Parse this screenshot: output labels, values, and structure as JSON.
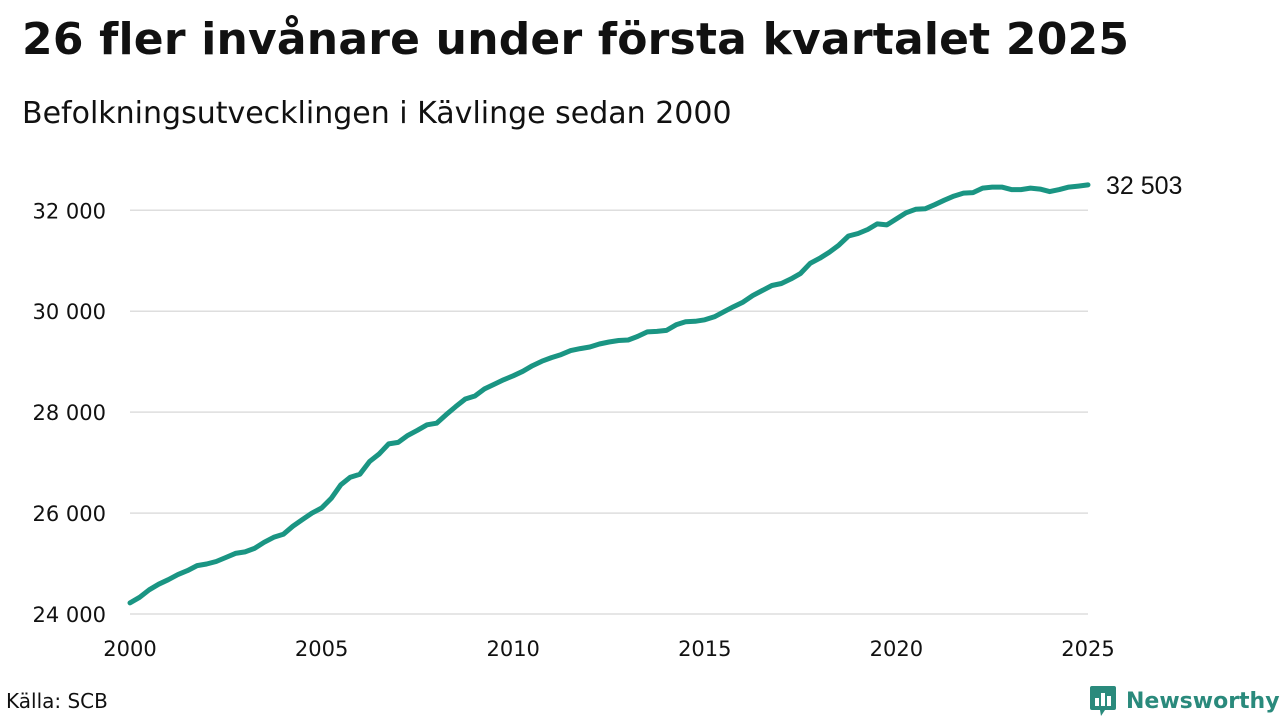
{
  "header": {
    "title": "26 fler invånare under första kvartalet 2025",
    "subtitle": "Befolkningsutvecklingen i Kävlinge sedan 2000"
  },
  "footer": {
    "source": "Källa: SCB",
    "brand": "Newsworthy",
    "brand_icon": "chart-bubble-icon",
    "brand_color": "#2a8a7c"
  },
  "chart_data": {
    "type": "line",
    "title": "26 fler invånare under första kvartalet 2025",
    "subtitle": "Befolkningsutvecklingen i Kävlinge sedan 2000",
    "xlim": [
      2000,
      2025
    ],
    "ylim": [
      24000,
      32600
    ],
    "x_ticks": [
      2000,
      2005,
      2010,
      2015,
      2020,
      2025
    ],
    "x_tick_labels": [
      "2000",
      "2005",
      "2010",
      "2015",
      "2020",
      "2025"
    ],
    "y_ticks": [
      24000,
      26000,
      28000,
      30000,
      32000
    ],
    "y_tick_labels": [
      "24 000",
      "26 000",
      "28 000",
      "30 000",
      "32 000"
    ],
    "grid": "horizontal",
    "line_color": "#1a9583",
    "end_label": "32 503",
    "series": [
      {
        "x": [
          2000.0,
          2000.25,
          2000.5,
          2000.75,
          2001.0,
          2001.25,
          2001.5,
          2001.75,
          2002.0,
          2002.25,
          2002.5,
          2002.75,
          2003.0,
          2003.25,
          2003.5,
          2003.75,
          2004.0,
          2004.25,
          2004.5,
          2004.75,
          2005.0,
          2005.25,
          2005.5,
          2005.75,
          2006.0,
          2006.25,
          2006.5,
          2006.75,
          2007.0,
          2007.25,
          2007.5,
          2007.75,
          2008.0,
          2008.25,
          2008.5,
          2008.75,
          2009.0,
          2009.25,
          2009.5,
          2009.75,
          2010.0,
          2010.25,
          2010.5,
          2010.75,
          2011.0,
          2011.25,
          2011.5,
          2011.75,
          2012.0,
          2012.25,
          2012.5,
          2012.75,
          2013.0,
          2013.25,
          2013.5,
          2013.75,
          2014.0,
          2014.25,
          2014.5,
          2014.75,
          2015.0,
          2015.25,
          2015.5,
          2015.75,
          2016.0,
          2016.25,
          2016.5,
          2016.75,
          2017.0,
          2017.25,
          2017.5,
          2017.75,
          2018.0,
          2018.25,
          2018.5,
          2018.75,
          2019.0,
          2019.25,
          2019.5,
          2019.75,
          2020.0,
          2020.25,
          2020.5,
          2020.75,
          2021.0,
          2021.25,
          2021.5,
          2021.75,
          2022.0,
          2022.25,
          2022.5,
          2022.75,
          2023.0,
          2023.25,
          2023.5,
          2023.75,
          2024.0,
          2024.25,
          2024.5,
          2024.75,
          2025.0
        ],
        "values": [
          24220,
          24330,
          24480,
          24590,
          24680,
          24780,
          24860,
          24960,
          24990,
          25040,
          25120,
          25200,
          25230,
          25300,
          25420,
          25520,
          25580,
          25740,
          25870,
          26000,
          26100,
          26290,
          26560,
          26710,
          26770,
          27020,
          27170,
          27370,
          27400,
          27540,
          27640,
          27750,
          27780,
          27950,
          28110,
          28260,
          28320,
          28460,
          28550,
          28640,
          28720,
          28810,
          28920,
          29010,
          29080,
          29140,
          29220,
          29260,
          29290,
          29350,
          29390,
          29420,
          29430,
          29500,
          29590,
          29600,
          29620,
          29730,
          29790,
          29800,
          29830,
          29890,
          29990,
          30090,
          30180,
          30310,
          30410,
          30510,
          30550,
          30640,
          30750,
          30950,
          31050,
          31170,
          31310,
          31490,
          31540,
          31620,
          31730,
          31710,
          31830,
          31950,
          32020,
          32030,
          32110,
          32200,
          32280,
          32340,
          32350,
          32440,
          32460,
          32460,
          32410,
          32410,
          32440,
          32420,
          32370,
          32410,
          32460,
          32480,
          32503
        ]
      }
    ]
  }
}
